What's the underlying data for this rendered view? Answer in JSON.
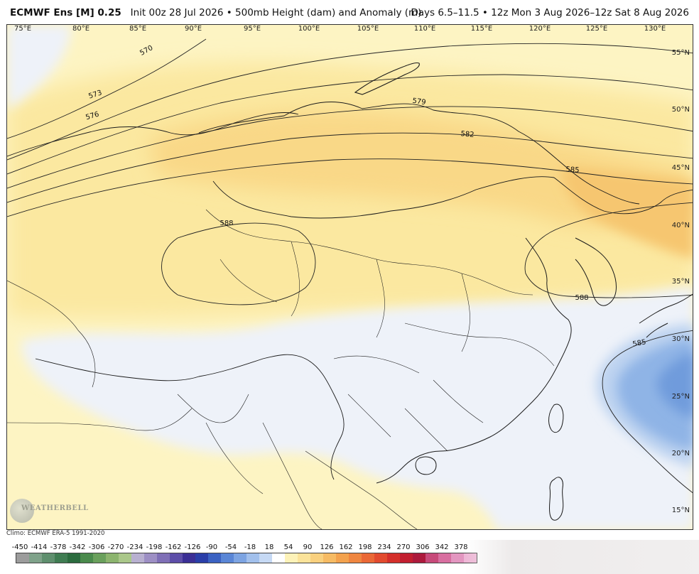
{
  "header": {
    "product": "ECMWF Ens [M] 0.25",
    "init": "Init 00z 28 Jul 2026",
    "bullet": "•",
    "field": "500mb Height (dam) and Anomaly (m)",
    "valid": "Days 6.5–11.5 • 12z Mon 3 Aug 2026–12z Sat 8 Aug 2026"
  },
  "map": {
    "lon_labels": [
      "75°E",
      "80°E",
      "85°E",
      "90°E",
      "95°E",
      "100°E",
      "105°E",
      "110°E",
      "115°E",
      "120°E",
      "125°E",
      "130°E"
    ],
    "lat_labels": [
      "55°N",
      "50°N",
      "45°N",
      "40°N",
      "35°N",
      "30°N",
      "25°N",
      "20°N",
      "15°N"
    ],
    "contours": [
      "570",
      "573",
      "576",
      "579",
      "582",
      "585",
      "588",
      "588",
      "585"
    ],
    "colors": {
      "pale_yellow": "#fdf4c3",
      "yellow": "#fbe8a0",
      "light_orange": "#f9d887",
      "orange": "#f6c670",
      "near_zero": "#eef2f9",
      "light_blue": "#bdd3f0",
      "blue": "#8fb4e6",
      "deep_blue": "#6f9bdc",
      "border": "#1a1a1a"
    }
  },
  "logo": {
    "name": "weatherbell-logo",
    "text": "WEATHERBELL"
  },
  "footer": {
    "climo": "Climo: ECMWF ERA-5 1991-2020",
    "colorbar_labels": [
      "-450",
      "-414",
      "-378",
      "-342",
      "-306",
      "-270",
      "-234",
      "-198",
      "-162",
      "-126",
      "-90",
      "-54",
      "-18",
      "18",
      "54",
      "90",
      "126",
      "162",
      "198",
      "234",
      "270",
      "306",
      "342",
      "378"
    ],
    "colorbar_colors": [
      "#9c9c9c",
      "#7fa28a",
      "#5f8f6e",
      "#3f7c52",
      "#2b6b3e",
      "#4a8a4c",
      "#6aa05c",
      "#8cb46e",
      "#aac78a",
      "#b8b0d0",
      "#9d8fc4",
      "#7f6fb6",
      "#5d4ea8",
      "#3b2f95",
      "#2a3ea8",
      "#3b62c2",
      "#5a86d6",
      "#7da4e2",
      "#a2c0ec",
      "#c6d9f4",
      "#ffffff",
      "#fdf2b8",
      "#fbe39a",
      "#f9d07e",
      "#f6bb64",
      "#f3a24e",
      "#ef8640",
      "#ea6836",
      "#e24a2e",
      "#d42f2a",
      "#c21f30",
      "#ac1a3c",
      "#c74a7a",
      "#d86fa0",
      "#e396c0",
      "#eeb6d6"
    ]
  }
}
